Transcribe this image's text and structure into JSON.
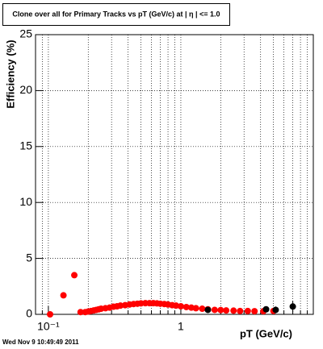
{
  "chart_data": {
    "type": "scatter",
    "title": "Clone  over all for Primary Tracks vs pT (GeV/c) at |  η | <= 1.0",
    "x_label": "pT (GeV/c)",
    "y_label": "Efficiency (%)",
    "footer": "Wed Nov  9 10:49:49 2011",
    "log_x": true,
    "grid": true,
    "xlim": [
      0.08,
      10
    ],
    "ylim": [
      0,
      25
    ],
    "xticks": [
      {
        "value": 0.1,
        "label": "10⁻¹"
      },
      1
    ],
    "xminorticks": [
      0.09,
      0.2,
      0.3,
      0.4,
      0.5,
      0.6,
      0.7,
      0.8,
      0.9,
      2,
      3,
      4,
      5,
      6,
      7,
      8,
      9
    ],
    "yticks": [
      0,
      5,
      10,
      15,
      20,
      25
    ],
    "series": [
      {
        "color": "#ff0000",
        "x": [
          0.103,
          0.13,
          0.157,
          0.175,
          0.19,
          0.2,
          0.21,
          0.22,
          0.23,
          0.24,
          0.25,
          0.27,
          0.29,
          0.31,
          0.33,
          0.35,
          0.38,
          0.41,
          0.44,
          0.47,
          0.5,
          0.54,
          0.58,
          0.62,
          0.66,
          0.7,
          0.75,
          0.8,
          0.86,
          0.92,
          1.0,
          1.1,
          1.2,
          1.3,
          1.45,
          1.6,
          1.8,
          2.0,
          2.2,
          2.5,
          2.8,
          3.2,
          3.6,
          4.2,
          5.0
        ],
        "values": [
          0,
          1.7,
          3.5,
          0.2,
          0.2,
          0.25,
          0.3,
          0.35,
          0.4,
          0.45,
          0.5,
          0.55,
          0.6,
          0.68,
          0.72,
          0.78,
          0.82,
          0.88,
          0.92,
          0.95,
          0.98,
          1.0,
          1.0,
          1.0,
          0.98,
          0.95,
          0.92,
          0.88,
          0.82,
          0.78,
          0.72,
          0.65,
          0.6,
          0.55,
          0.5,
          0.45,
          0.4,
          0.38,
          0.35,
          0.33,
          0.3,
          0.3,
          0.28,
          0.28,
          0.3
        ]
      },
      {
        "color": "#000000",
        "x": [
          1.6,
          4.4,
          5.2,
          7.0
        ],
        "values": [
          0.4,
          0.45,
          0.4,
          0.7
        ],
        "errors": [
          0.15,
          0.2,
          0.3,
          0.5
        ]
      }
    ]
  }
}
